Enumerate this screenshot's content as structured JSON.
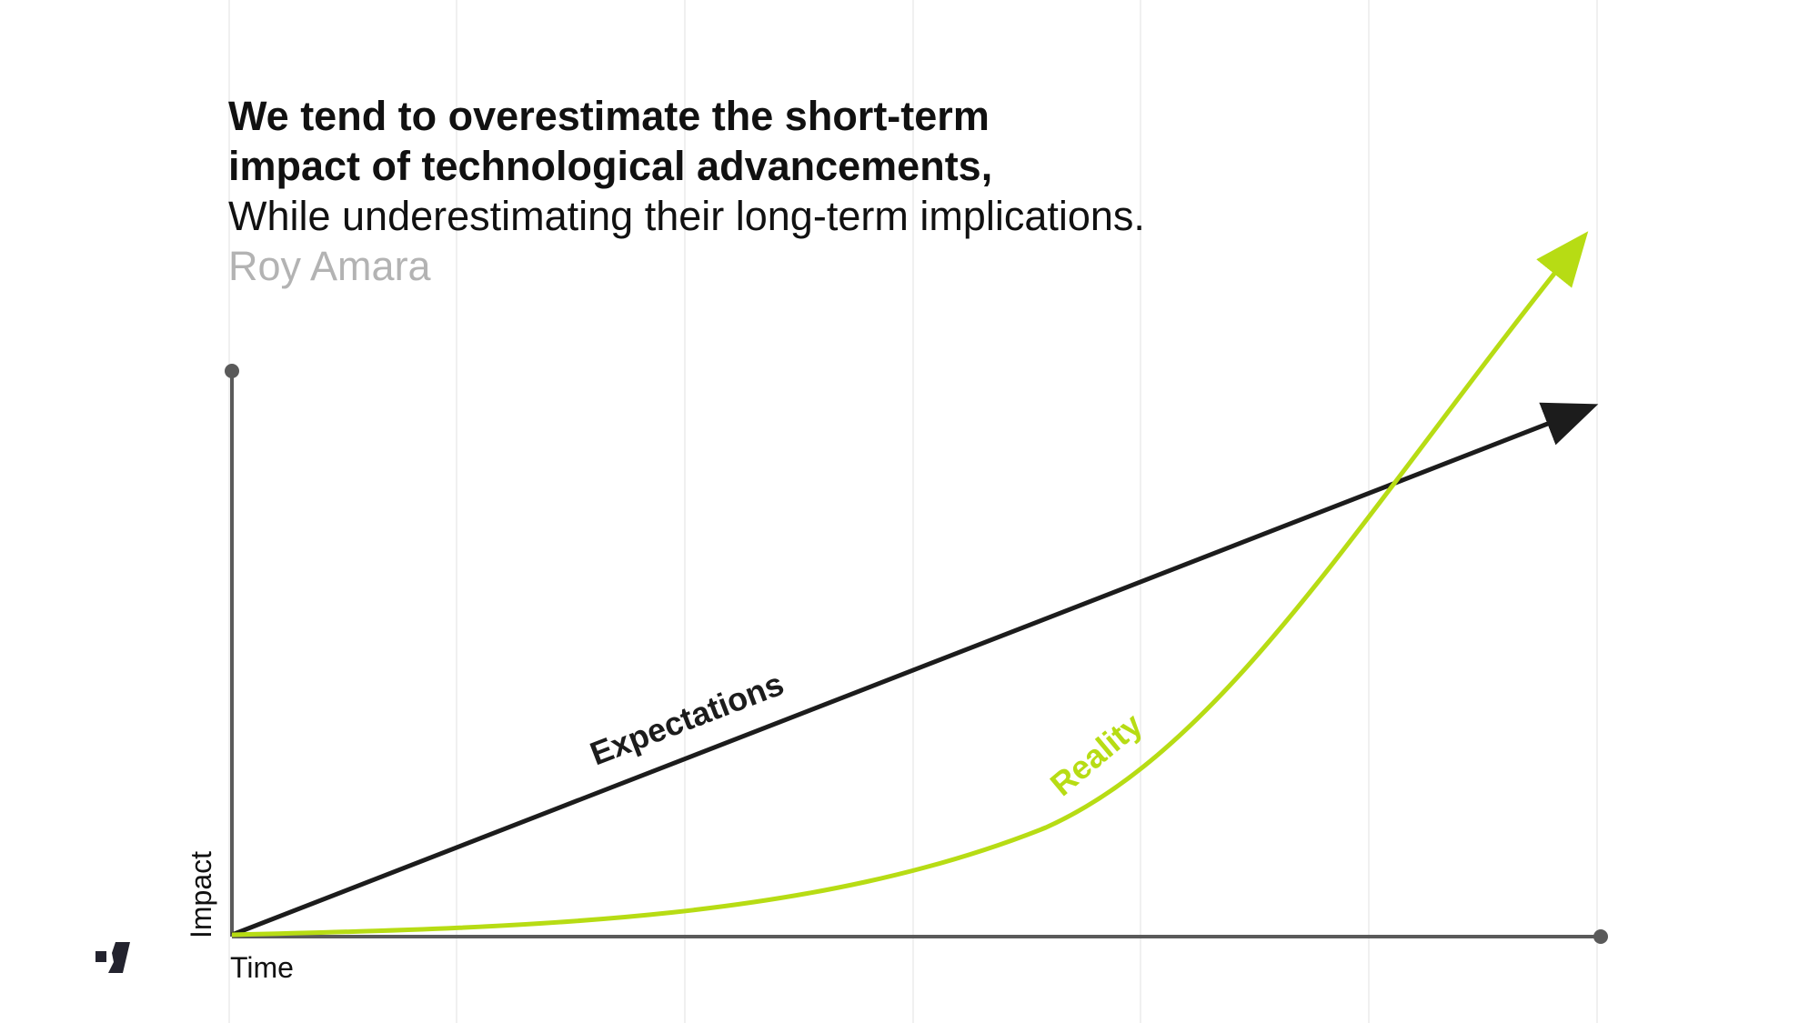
{
  "quote": {
    "line1": "We tend to overestimate the short-term",
    "line2": "impact of technological advancements,",
    "line3": "While underestimating their long-term implications.",
    "author": "Roy Amara"
  },
  "diagram": {
    "x_axis_label": "Time",
    "y_axis_label": "Impact",
    "expectations_label": "Expectations",
    "reality_label": "Reality",
    "colors": {
      "expectations": "#1c1c1c",
      "reality": "#b7dc14",
      "axis": "#5a5a5a"
    }
  },
  "logo": {
    "icon": "brand-logo-icon"
  }
}
